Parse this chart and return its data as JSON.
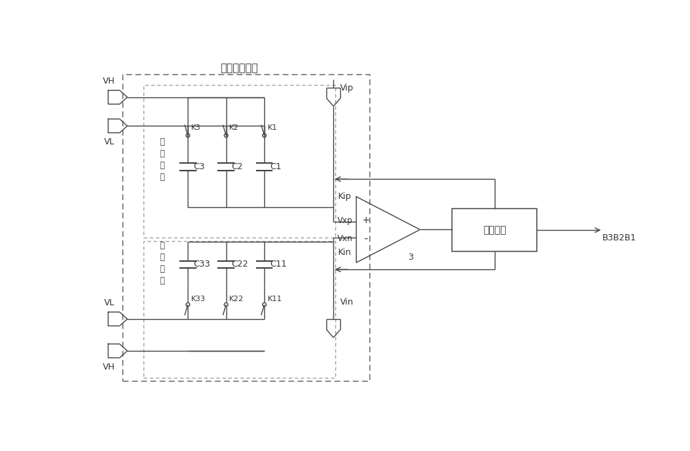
{
  "bg_color": "#ffffff",
  "line_color": "#444444",
  "figsize": [
    10.0,
    6.53
  ],
  "dpi": 100,
  "title": "开关电容网络",
  "labels": {
    "VH_top": "VH",
    "VL_top": "VL",
    "VL_bot": "VL",
    "VH_bot": "VH",
    "K3": "K3",
    "K2": "K2",
    "K1": "K1",
    "K33": "K33",
    "K22": "K22",
    "K11": "K11",
    "C3": "C3",
    "C2": "C2",
    "C1": "C1",
    "C33": "C33",
    "C22": "C22",
    "C11": "C11",
    "Vip": "Vip",
    "Vin": "Vin",
    "Kip": "Kip",
    "Kin": "Kin",
    "Vxp": "Vxp",
    "Vxn": "Vxn",
    "plus": "+",
    "minus": "-",
    "num3": "3",
    "control": "控制电路",
    "B3B2B1": "B3B2B1",
    "zhengxiang": "正\n相\n网\n络",
    "fanxiang": "反\n相\n网\n络"
  }
}
